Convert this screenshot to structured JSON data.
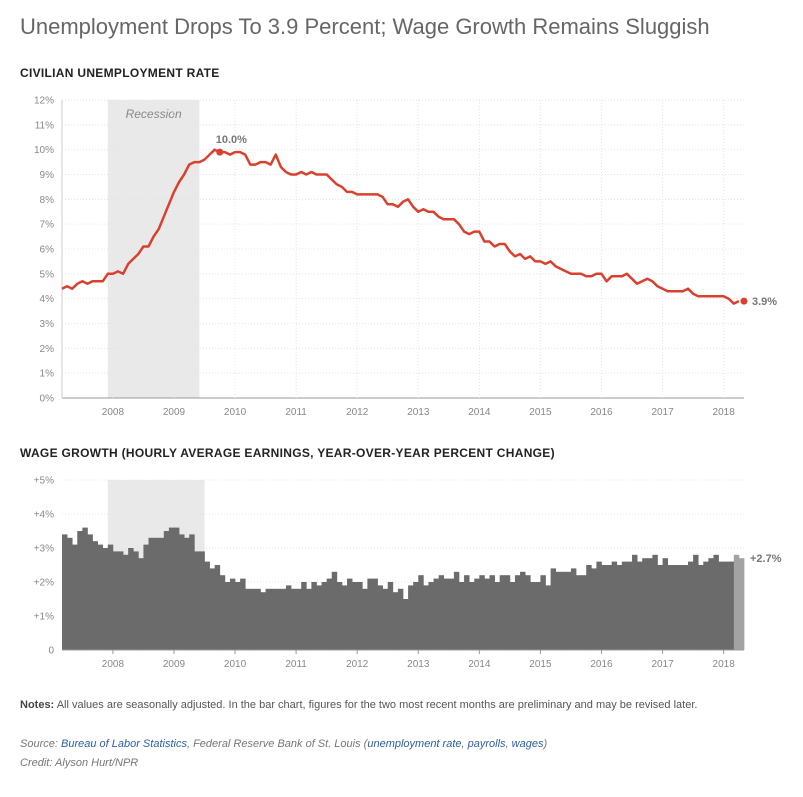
{
  "header": {
    "title": "Unemployment Drops To 3.9 Percent; Wage Growth Remains Sluggish"
  },
  "colors": {
    "line": "#d9412f",
    "bar": "#6b6b6b",
    "bar_preliminary": "#a3a3a3",
    "recession": "#e9e9e9"
  },
  "footer": {
    "notes_label": "Notes:",
    "notes_text": "All values are seasonally adjusted. In the bar chart, figures for the two most recent months are preliminary and may be revised later.",
    "source_label": "Source:",
    "source_bls": "Bureau of Labor Statistics",
    "source_fed": "Federal Reserve Bank of St. Louis",
    "source_paren_open": "(",
    "link_unemployment": "unemployment rate",
    "link_payrolls": "payrolls",
    "link_wages": "wages",
    "source_paren_close": ")",
    "credit": "Credit: Alyson Hurt/NPR"
  },
  "chart_data": [
    {
      "type": "line",
      "title": "CIVILIAN UNEMPLOYMENT RATE",
      "x_start": "2007-03",
      "x_end": "2018-05",
      "x_ticks": [
        "2008",
        "2009",
        "2010",
        "2011",
        "2012",
        "2013",
        "2014",
        "2015",
        "2016",
        "2017",
        "2018"
      ],
      "y_ticks": [
        "0%",
        "1%",
        "2%",
        "3%",
        "4%",
        "5%",
        "6%",
        "7%",
        "8%",
        "9%",
        "10%",
        "11%",
        "12%"
      ],
      "ylim": [
        0,
        12
      ],
      "grid": true,
      "recession": {
        "label": "Recession",
        "start": "2007-12",
        "end": "2009-06"
      },
      "annotations": {
        "peak": "10.0%",
        "peak_date": "2009-10",
        "last": "3.9%"
      },
      "series": [
        {
          "values": [
            4.4,
            4.5,
            4.4,
            4.6,
            4.7,
            4.6,
            4.7,
            4.7,
            4.7,
            5.0,
            5.0,
            5.1,
            5.0,
            5.4,
            5.6,
            5.8,
            6.1,
            6.1,
            6.5,
            6.8,
            7.3,
            7.8,
            8.3,
            8.7,
            9.0,
            9.4,
            9.5,
            9.5,
            9.6,
            9.8,
            10.0,
            9.9,
            9.9,
            9.8,
            9.9,
            9.9,
            9.8,
            9.4,
            9.4,
            9.5,
            9.5,
            9.4,
            9.8,
            9.3,
            9.1,
            9.0,
            9.0,
            9.1,
            9.0,
            9.1,
            9.0,
            9.0,
            9.0,
            8.8,
            8.6,
            8.5,
            8.3,
            8.3,
            8.2,
            8.2,
            8.2,
            8.2,
            8.2,
            8.1,
            7.8,
            7.8,
            7.7,
            7.9,
            8.0,
            7.7,
            7.5,
            7.6,
            7.5,
            7.5,
            7.3,
            7.2,
            7.2,
            7.2,
            7.0,
            6.7,
            6.6,
            6.7,
            6.7,
            6.3,
            6.3,
            6.1,
            6.2,
            6.2,
            5.9,
            5.7,
            5.8,
            5.6,
            5.7,
            5.5,
            5.5,
            5.4,
            5.5,
            5.3,
            5.2,
            5.1,
            5.0,
            5.0,
            5.0,
            4.9,
            4.9,
            5.0,
            5.0,
            4.7,
            4.9,
            4.9,
            4.9,
            5.0,
            4.8,
            4.6,
            4.7,
            4.8,
            4.7,
            4.5,
            4.4,
            4.3,
            4.3,
            4.3,
            4.3,
            4.4,
            4.2,
            4.1,
            4.1,
            4.1,
            4.1,
            4.1,
            4.1,
            4.0,
            3.8,
            3.9
          ]
        }
      ]
    },
    {
      "type": "bar",
      "title": "WAGE GROWTH (HOURLY AVERAGE EARNINGS, YEAR-OVER-YEAR PERCENT CHANGE)",
      "x_start": "2007-03",
      "x_end": "2018-05",
      "x_ticks": [
        "2008",
        "2009",
        "2010",
        "2011",
        "2012",
        "2013",
        "2014",
        "2015",
        "2016",
        "2017",
        "2018"
      ],
      "y_ticks": [
        "0",
        "+1%",
        "+2%",
        "+3%",
        "+4%",
        "+5%"
      ],
      "ylim": [
        0,
        5
      ],
      "grid": true,
      "recession": {
        "start": "2007-12",
        "end": "2009-06"
      },
      "preliminary_count": 2,
      "annotations": {
        "last": "+2.7%"
      },
      "series": [
        {
          "values": [
            3.4,
            3.3,
            3.1,
            3.5,
            3.6,
            3.4,
            3.2,
            3.1,
            3.0,
            3.1,
            2.9,
            2.9,
            2.8,
            3.0,
            2.9,
            2.7,
            3.1,
            3.3,
            3.3,
            3.3,
            3.5,
            3.6,
            3.6,
            3.4,
            3.3,
            3.4,
            2.9,
            2.9,
            2.6,
            2.4,
            2.5,
            2.2,
            2.0,
            2.1,
            2.0,
            2.1,
            1.8,
            1.8,
            1.8,
            1.7,
            1.8,
            1.8,
            1.8,
            1.8,
            1.9,
            1.8,
            1.8,
            2.0,
            1.8,
            2.0,
            1.9,
            2.0,
            2.1,
            2.3,
            2.0,
            1.9,
            2.1,
            2.0,
            2.0,
            1.8,
            2.1,
            2.1,
            1.9,
            1.8,
            2.0,
            1.7,
            1.8,
            1.5,
            1.9,
            2.0,
            2.2,
            1.9,
            2.0,
            2.1,
            2.2,
            2.1,
            2.1,
            2.3,
            2.0,
            2.2,
            2.0,
            2.1,
            2.2,
            2.1,
            2.2,
            2.0,
            2.2,
            2.2,
            2.0,
            2.2,
            2.3,
            2.2,
            2.0,
            2.0,
            2.2,
            1.9,
            2.4,
            2.3,
            2.3,
            2.3,
            2.4,
            2.2,
            2.2,
            2.5,
            2.4,
            2.6,
            2.5,
            2.5,
            2.6,
            2.5,
            2.6,
            2.6,
            2.8,
            2.6,
            2.7,
            2.7,
            2.8,
            2.5,
            2.7,
            2.5,
            2.5,
            2.5,
            2.5,
            2.6,
            2.8,
            2.5,
            2.6,
            2.7,
            2.8,
            2.6,
            2.6,
            2.6,
            2.8,
            2.7
          ]
        }
      ]
    }
  ]
}
